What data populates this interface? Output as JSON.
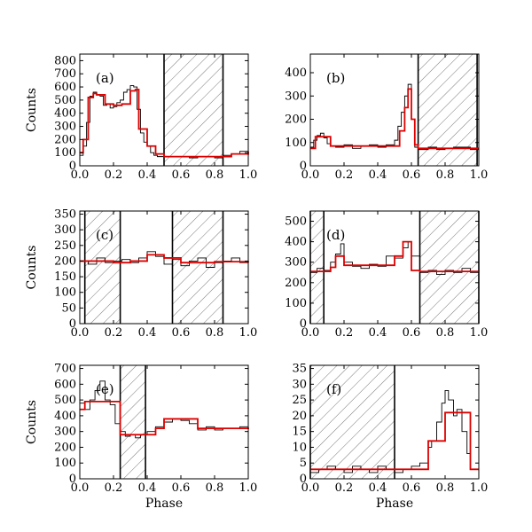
{
  "chart_data": [
    {
      "type": "line",
      "label": "(a)",
      "ylabel": "Counts",
      "xlabel": "",
      "xlim": [
        0,
        1
      ],
      "ylim": [
        0,
        850
      ],
      "xticks": [
        "0.0",
        "0.2",
        "0.4",
        "0.6",
        "0.8",
        "1.0"
      ],
      "yticks": [
        "0",
        "100",
        "200",
        "300",
        "400",
        "500",
        "600",
        "700",
        "800"
      ],
      "excluded_ranges": [
        [
          0.5,
          0.85
        ]
      ],
      "series": [
        {
          "role": "histogram",
          "color": "#000000",
          "x": [
            0.0,
            0.02,
            0.04,
            0.06,
            0.08,
            0.1,
            0.12,
            0.14,
            0.16,
            0.18,
            0.2,
            0.22,
            0.24,
            0.26,
            0.28,
            0.3,
            0.32,
            0.34,
            0.36,
            0.38,
            0.4,
            0.42,
            0.44,
            0.46,
            0.48,
            0.5,
            0.55,
            0.6,
            0.65,
            0.7,
            0.75,
            0.8,
            0.85,
            0.9,
            0.95,
            1.0
          ],
          "values": [
            80,
            150,
            330,
            530,
            560,
            540,
            530,
            460,
            470,
            440,
            450,
            480,
            500,
            560,
            580,
            610,
            600,
            430,
            250,
            180,
            150,
            100,
            80,
            70,
            70,
            70,
            70,
            70,
            60,
            70,
            70,
            60,
            80,
            90,
            110,
            120
          ]
        },
        {
          "role": "model",
          "color": "#dd0000",
          "x": [
            0.0,
            0.02,
            0.05,
            0.08,
            0.1,
            0.15,
            0.2,
            0.25,
            0.3,
            0.33,
            0.35,
            0.4,
            0.45,
            0.5,
            0.85,
            0.9,
            1.0
          ],
          "values": [
            100,
            200,
            520,
            550,
            540,
            470,
            460,
            470,
            570,
            580,
            280,
            150,
            90,
            70,
            70,
            90,
            110
          ]
        }
      ]
    },
    {
      "type": "line",
      "label": "(b)",
      "ylabel": "",
      "xlabel": "",
      "xlim": [
        0,
        1
      ],
      "ylim": [
        0,
        480
      ],
      "xticks": [
        "0.0",
        "0.2",
        "0.4",
        "0.6",
        "0.8",
        "1.0"
      ],
      "yticks": [
        "0",
        "100",
        "200",
        "300",
        "400"
      ],
      "excluded_ranges": [
        [
          0.64,
          0.99
        ]
      ],
      "series": [
        {
          "role": "histogram",
          "color": "#000000",
          "x": [
            0.0,
            0.02,
            0.04,
            0.06,
            0.08,
            0.1,
            0.12,
            0.15,
            0.2,
            0.25,
            0.3,
            0.35,
            0.4,
            0.45,
            0.5,
            0.52,
            0.54,
            0.56,
            0.58,
            0.6,
            0.62,
            0.64,
            0.7,
            0.75,
            0.8,
            0.85,
            0.9,
            0.95,
            1.0
          ],
          "values": [
            80,
            110,
            130,
            140,
            120,
            95,
            85,
            80,
            90,
            75,
            85,
            90,
            80,
            90,
            110,
            170,
            230,
            300,
            350,
            200,
            80,
            70,
            80,
            70,
            75,
            80,
            80,
            70,
            70
          ]
        },
        {
          "role": "model",
          "color": "#dd0000",
          "x": [
            0.0,
            0.03,
            0.08,
            0.12,
            0.5,
            0.53,
            0.56,
            0.58,
            0.6,
            0.62,
            0.64,
            1.0
          ],
          "values": [
            75,
            125,
            125,
            85,
            85,
            150,
            250,
            330,
            200,
            90,
            75,
            75
          ]
        }
      ]
    },
    {
      "type": "line",
      "label": "(c)",
      "ylabel": "Counts",
      "xlabel": "",
      "xlim": [
        0,
        1
      ],
      "ylim": [
        0,
        360
      ],
      "xticks": [
        "0.0",
        "0.2",
        "0.4",
        "0.6",
        "0.8",
        "1.0"
      ],
      "yticks": [
        "0",
        "50",
        "100",
        "150",
        "200",
        "250",
        "300",
        "350"
      ],
      "excluded_ranges": [
        [
          0.03,
          0.24
        ],
        [
          0.55,
          0.85
        ]
      ],
      "series": [
        {
          "role": "histogram",
          "color": "#000000",
          "x": [
            0.0,
            0.05,
            0.1,
            0.15,
            0.2,
            0.25,
            0.3,
            0.35,
            0.4,
            0.45,
            0.5,
            0.55,
            0.6,
            0.65,
            0.7,
            0.75,
            0.8,
            0.85,
            0.9,
            0.95,
            1.0
          ],
          "values": [
            200,
            190,
            210,
            195,
            200,
            205,
            195,
            210,
            230,
            215,
            190,
            205,
            185,
            200,
            210,
            180,
            195,
            200,
            210,
            195,
            205
          ]
        },
        {
          "role": "model",
          "color": "#dd0000",
          "x": [
            0.0,
            0.2,
            0.3,
            0.4,
            0.5,
            0.6,
            0.8,
            1.0
          ],
          "values": [
            200,
            195,
            200,
            220,
            210,
            195,
            198,
            200
          ]
        }
      ]
    },
    {
      "type": "line",
      "label": "(d)",
      "ylabel": "",
      "xlabel": "",
      "xlim": [
        0,
        1
      ],
      "ylim": [
        0,
        550
      ],
      "xticks": [
        "0.0",
        "0.2",
        "0.4",
        "0.6",
        "0.8",
        "1.0"
      ],
      "yticks": [
        "0",
        "100",
        "200",
        "300",
        "400",
        "500"
      ],
      "excluded_ranges": [
        [
          0.0,
          0.08
        ],
        [
          0.65,
          1.0
        ]
      ],
      "series": [
        {
          "role": "histogram",
          "color": "#000000",
          "x": [
            0.0,
            0.04,
            0.08,
            0.12,
            0.15,
            0.18,
            0.2,
            0.25,
            0.3,
            0.35,
            0.4,
            0.45,
            0.5,
            0.55,
            0.58,
            0.6,
            0.65,
            0.7,
            0.75,
            0.8,
            0.85,
            0.9,
            0.95,
            1.0
          ],
          "values": [
            250,
            270,
            260,
            300,
            340,
            390,
            300,
            280,
            270,
            290,
            280,
            330,
            320,
            370,
            400,
            330,
            250,
            260,
            240,
            260,
            250,
            270,
            250,
            260
          ]
        },
        {
          "role": "model",
          "color": "#dd0000",
          "x": [
            0.0,
            0.12,
            0.15,
            0.2,
            0.4,
            0.5,
            0.55,
            0.6,
            0.65,
            1.0
          ],
          "values": [
            255,
            275,
            330,
            285,
            285,
            330,
            400,
            260,
            255,
            255
          ]
        }
      ]
    },
    {
      "type": "line",
      "label": "(e)",
      "ylabel": "Counts",
      "xlabel": "Phase",
      "xlim": [
        0,
        1
      ],
      "ylim": [
        0,
        720
      ],
      "xticks": [
        "0.0",
        "0.2",
        "0.4",
        "0.6",
        "0.8",
        "1.0"
      ],
      "yticks": [
        "0",
        "100",
        "200",
        "300",
        "400",
        "500",
        "600",
        "700"
      ],
      "excluded_ranges": [
        [
          0.24,
          0.39
        ]
      ],
      "series": [
        {
          "role": "histogram",
          "color": "#000000",
          "x": [
            0.0,
            0.03,
            0.06,
            0.09,
            0.12,
            0.15,
            0.18,
            0.21,
            0.24,
            0.27,
            0.3,
            0.33,
            0.36,
            0.4,
            0.45,
            0.5,
            0.55,
            0.6,
            0.65,
            0.7,
            0.75,
            0.8,
            0.85,
            0.9,
            0.95,
            1.0
          ],
          "values": [
            480,
            440,
            500,
            560,
            620,
            500,
            470,
            350,
            300,
            270,
            280,
            260,
            280,
            300,
            330,
            360,
            380,
            370,
            350,
            310,
            330,
            310,
            320,
            320,
            330,
            320
          ]
        },
        {
          "role": "model",
          "color": "#dd0000",
          "x": [
            0.0,
            0.03,
            0.2,
            0.24,
            0.4,
            0.45,
            0.5,
            0.65,
            0.7,
            1.0
          ],
          "values": [
            440,
            490,
            490,
            280,
            280,
            320,
            380,
            380,
            320,
            325
          ]
        }
      ]
    },
    {
      "type": "line",
      "label": "(f)",
      "ylabel": "",
      "xlabel": "Phase",
      "xlim": [
        0,
        1
      ],
      "ylim": [
        0,
        36
      ],
      "xticks": [
        "0.0",
        "0.2",
        "0.4",
        "0.6",
        "0.8",
        "1.0"
      ],
      "yticks": [
        "0",
        "5",
        "10",
        "15",
        "20",
        "25",
        "30",
        "35"
      ],
      "excluded_ranges": [
        [
          0.0,
          0.5
        ]
      ],
      "series": [
        {
          "role": "histogram",
          "color": "#000000",
          "x": [
            0.0,
            0.05,
            0.1,
            0.15,
            0.2,
            0.25,
            0.3,
            0.35,
            0.4,
            0.45,
            0.5,
            0.55,
            0.6,
            0.65,
            0.7,
            0.72,
            0.75,
            0.78,
            0.8,
            0.82,
            0.85,
            0.87,
            0.9,
            0.93,
            0.95,
            1.0
          ],
          "values": [
            2,
            3,
            4,
            3,
            2,
            4,
            3,
            2,
            4,
            3,
            2,
            3,
            4,
            5,
            10,
            12,
            18,
            24,
            28,
            25,
            20,
            22,
            15,
            8,
            3,
            3
          ]
        },
        {
          "role": "model",
          "color": "#dd0000",
          "x": [
            0.0,
            0.67,
            0.7,
            0.75,
            0.8,
            0.85,
            0.9,
            0.95,
            1.0
          ],
          "values": [
            3,
            3,
            12,
            12,
            21,
            21,
            21,
            3,
            3
          ]
        }
      ]
    }
  ]
}
